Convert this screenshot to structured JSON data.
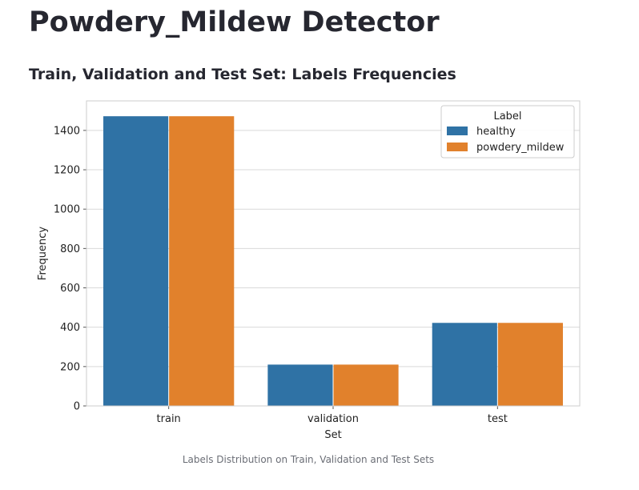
{
  "page": {
    "title": "Powdery_Mildew Detector",
    "section_title": "Train, Validation and Test Set: Labels Frequencies",
    "caption": "Labels Distribution on Train, Validation and Test Sets"
  },
  "chart_data": {
    "type": "bar",
    "title": "",
    "xlabel": "Set",
    "ylabel": "Frequency",
    "categories": [
      "train",
      "validation",
      "test"
    ],
    "series": [
      {
        "name": "healthy",
        "values": [
          1472,
          210,
          422
        ],
        "color": "#2f72a5"
      },
      {
        "name": "powdery_mildew",
        "values": [
          1472,
          210,
          422
        ],
        "color": "#e1812c"
      }
    ],
    "ylim": [
      0,
      1550
    ],
    "yticks": [
      0,
      200,
      400,
      600,
      800,
      1000,
      1200,
      1400
    ],
    "grid": true,
    "legend": {
      "title": "Label",
      "placement": "top-right"
    }
  }
}
